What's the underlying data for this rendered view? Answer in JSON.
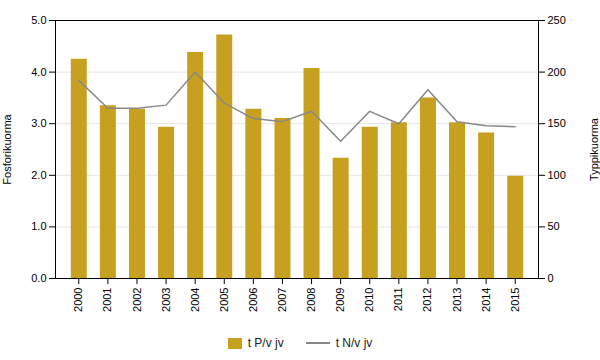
{
  "chart_data": {
    "type": "bar",
    "x": [
      2000,
      2001,
      2002,
      2003,
      2004,
      2005,
      2006,
      2007,
      2008,
      2009,
      2010,
      2011,
      2012,
      2013,
      2014,
      2015
    ],
    "xlim": [
      1999.2,
      2015.8
    ],
    "xticks": [
      2000,
      2001,
      2002,
      2003,
      2004,
      2005,
      2006,
      2007,
      2008,
      2009,
      2010,
      2011,
      2012,
      2013,
      2014,
      2015
    ],
    "ylabel": "Fosforikuorma",
    "y2label": "Typpikuorma",
    "ylim": [
      0,
      5
    ],
    "yticks": [
      0,
      1,
      2,
      3,
      4,
      5
    ],
    "y2lim": [
      0,
      250
    ],
    "y2ticks": [
      0,
      50,
      100,
      150,
      200,
      250
    ],
    "grid": true,
    "legend": "bottom",
    "series": [
      {
        "name": "t P/v jv",
        "type": "bar",
        "color": "#C8A020",
        "values": [
          4.25,
          3.35,
          3.28,
          2.93,
          4.38,
          4.72,
          3.28,
          3.1,
          4.07,
          2.33,
          2.93,
          3.02,
          3.5,
          3.02,
          2.82,
          1.98
        ]
      },
      {
        "name": "t N/v jv",
        "type": "line",
        "color": "#888888",
        "axis": "y2",
        "values": [
          192,
          165,
          165,
          168,
          200,
          170,
          155,
          152,
          162,
          133,
          162,
          150,
          183,
          152,
          148,
          147
        ]
      }
    ]
  }
}
